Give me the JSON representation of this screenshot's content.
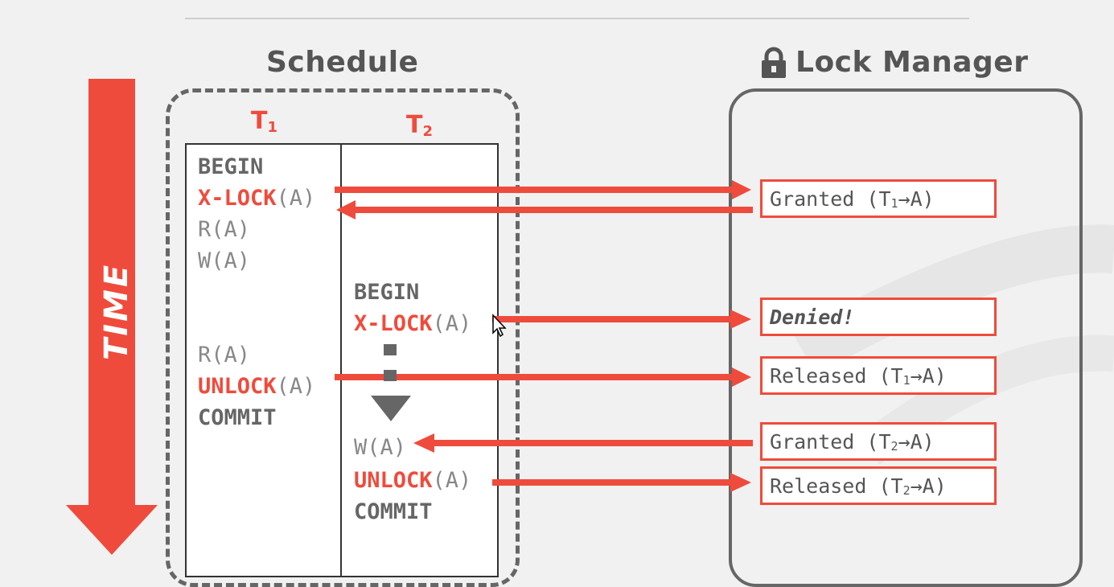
{
  "titles": {
    "schedule": "Schedule",
    "lock_manager": "Lock Manager",
    "time": "TIME"
  },
  "transactions": {
    "t1": {
      "label": "T",
      "sub": "1"
    },
    "t2": {
      "label": "T",
      "sub": "2"
    }
  },
  "t1_ops": {
    "begin": "BEGIN",
    "xlock_kw": "X-LOCK",
    "xlock_arg": "(A)",
    "read1": "R(A)",
    "write1": "W(A)",
    "read2": "R(A)",
    "unlock_kw": "UNLOCK",
    "unlock_arg": "(A)",
    "commit": "COMMIT"
  },
  "t2_ops": {
    "begin": "BEGIN",
    "xlock_kw": "X-LOCK",
    "xlock_arg": "(A)",
    "write": "W(A)",
    "unlock_kw": "UNLOCK",
    "unlock_arg": "(A)",
    "commit": "COMMIT"
  },
  "lock_events": {
    "granted_t1": {
      "text": "Granted (T",
      "sub": "1",
      "tail": "→A)"
    },
    "denied": {
      "text": "Denied!"
    },
    "released_t1": {
      "text": "Released (T",
      "sub": "1",
      "tail": "→A)"
    },
    "granted_t2": {
      "text": "Granted (T",
      "sub": "2",
      "tail": "→A)"
    },
    "released_t2": {
      "text": "Released (T",
      "sub": "2",
      "tail": "→A)"
    }
  },
  "colors": {
    "accent": "#ef4b3c",
    "frame": "#666666",
    "text": "#555555"
  }
}
